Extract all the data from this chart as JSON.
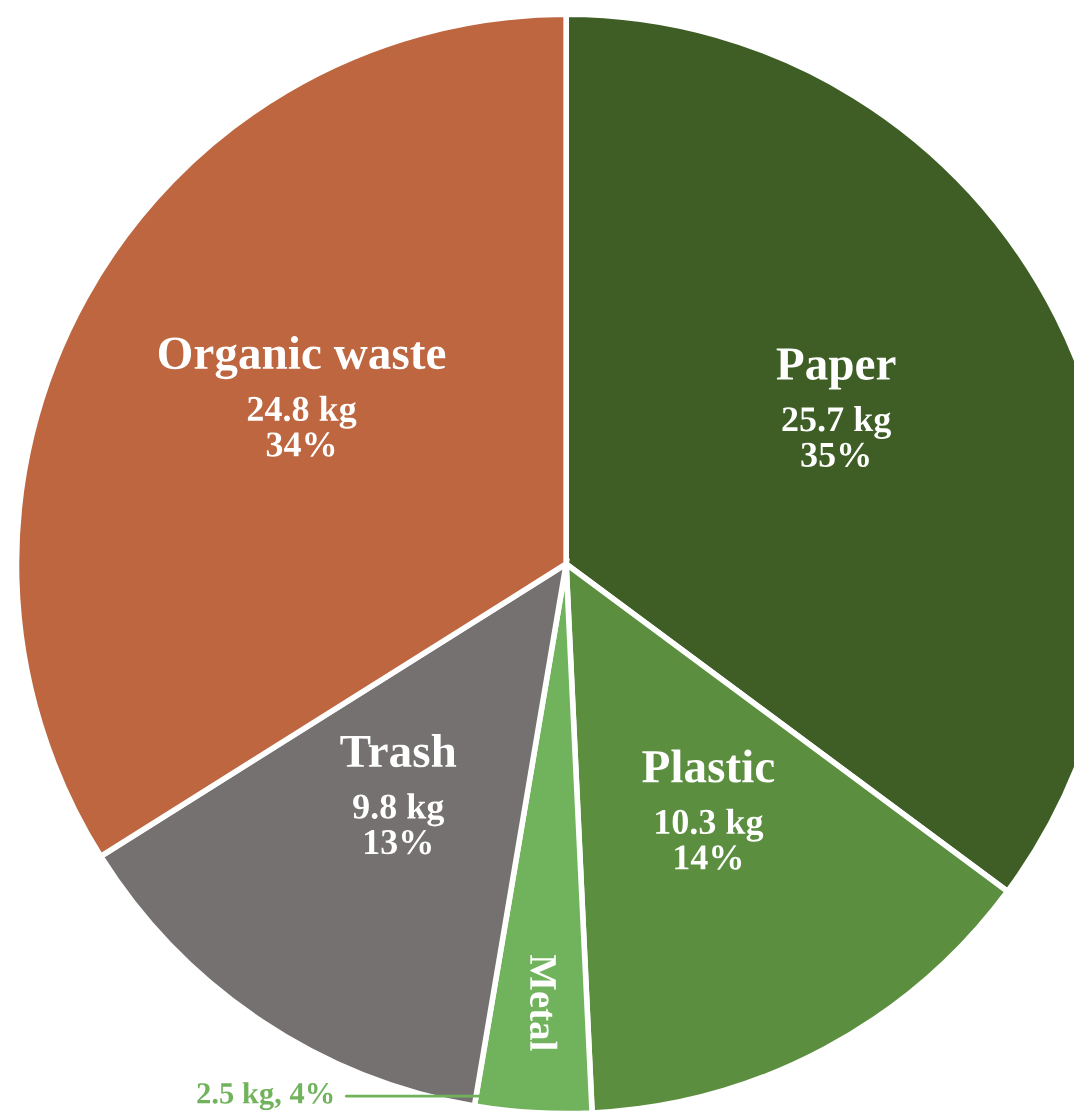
{
  "chart_data": {
    "type": "pie",
    "categories": [
      "Paper",
      "Plastic",
      "Metal",
      "Trash",
      "Organic waste"
    ],
    "values": [
      25.7,
      10.3,
      2.5,
      9.8,
      24.8
    ],
    "value_labels": [
      "25.7 kg\n35%",
      "10.3 kg\n14%",
      "2.5 kg, 4%",
      "9.8 kg\n13%",
      "24.8 kg\n34%"
    ],
    "colors": [
      "#3e5e25",
      "#5b8f3f",
      "#71b35c",
      "#767171",
      "#bd6640"
    ]
  }
}
